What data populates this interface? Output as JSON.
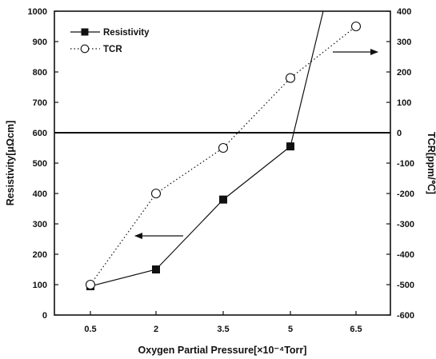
{
  "chart_data": {
    "type": "line",
    "xlabel": "Oxygen Partial Pressure[×10⁻⁴Torr]",
    "ylabel_left": "Resistivity[μΩcm]",
    "ylabel_right": "TCR[ppm/℃]",
    "categories": [
      "0.5",
      "2",
      "3.5",
      "5",
      "6.5"
    ],
    "y_left": {
      "range": [
        0,
        1000
      ],
      "ticks": [
        "0",
        "100",
        "200",
        "300",
        "400",
        "500",
        "600",
        "700",
        "800",
        "900",
        "1000"
      ]
    },
    "y_right": {
      "range": [
        -600,
        400
      ],
      "ticks": [
        "-600",
        "-500",
        "-400",
        "-300",
        "-200",
        "-100",
        "0",
        "100",
        "200",
        "300",
        "400"
      ]
    },
    "grid": false,
    "legend_position": "top-left",
    "reference_line": {
      "axis": "right",
      "value": 0
    },
    "series": [
      {
        "name": "Resistivity",
        "axis": "left",
        "marker": "filled-square",
        "style": "solid",
        "x": [
          0.5,
          2,
          3.5,
          5,
          5.75
        ],
        "values": [
          95,
          150,
          380,
          555,
          1000
        ]
      },
      {
        "name": "TCR",
        "axis": "right",
        "marker": "open-circle",
        "style": "dotted",
        "x": [
          0.5,
          2,
          3.5,
          5,
          6.5
        ],
        "values": [
          -500,
          -200,
          -50,
          180,
          350
        ]
      }
    ],
    "annotations": [
      {
        "type": "arrow",
        "direction": "left",
        "points_to": "left-axis"
      },
      {
        "type": "arrow",
        "direction": "right",
        "points_to": "right-axis"
      }
    ]
  }
}
